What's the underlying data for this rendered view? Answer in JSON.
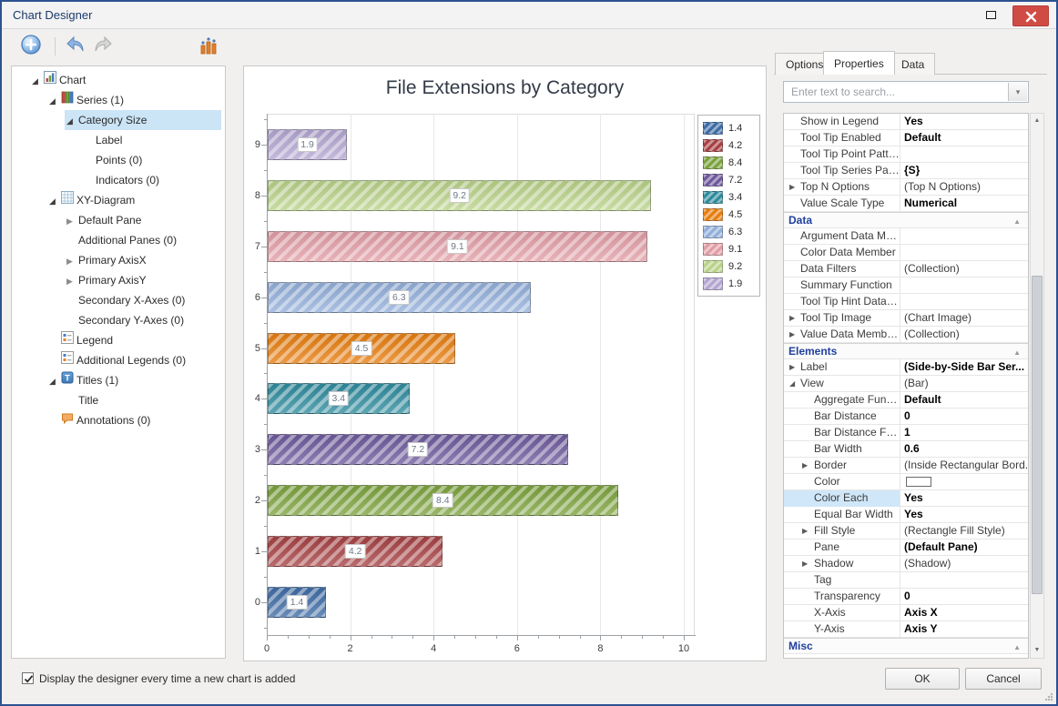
{
  "window": {
    "title": "Chart Designer"
  },
  "toolbar": {
    "buttons": [
      {
        "icon": "add-chart-icon"
      },
      {
        "icon": "undo-icon"
      },
      {
        "icon": "redo-icon"
      },
      {
        "icon": "chart-type-icon"
      }
    ]
  },
  "tree": {
    "items": [
      {
        "label": "Chart",
        "level": 0,
        "glyph": "expanded",
        "icon": "chart-icon"
      },
      {
        "label": "Series (1)",
        "level": 1,
        "glyph": "expanded",
        "icon": "series-icon"
      },
      {
        "label": "Category Size",
        "level": 2,
        "glyph": "expanded",
        "selected": true
      },
      {
        "label": "Label",
        "level": 3
      },
      {
        "label": "Points (0)",
        "level": 3
      },
      {
        "label": "Indicators (0)",
        "level": 3
      },
      {
        "label": "XY-Diagram",
        "level": 1,
        "glyph": "expanded",
        "icon": "diagram-icon"
      },
      {
        "label": "Default Pane",
        "level": 2,
        "glyph": "collapsed"
      },
      {
        "label": "Additional Panes (0)",
        "level": 2
      },
      {
        "label": "Primary AxisX",
        "level": 2,
        "glyph": "collapsed"
      },
      {
        "label": "Primary AxisY",
        "level": 2,
        "glyph": "collapsed"
      },
      {
        "label": "Secondary X-Axes (0)",
        "level": 2
      },
      {
        "label": "Secondary Y-Axes (0)",
        "level": 2
      },
      {
        "label": "Legend",
        "level": 1,
        "icon": "legend-icon"
      },
      {
        "label": "Additional Legends (0)",
        "level": 1,
        "icon": "legend-icon"
      },
      {
        "label": "Titles (1)",
        "level": 1,
        "glyph": "expanded",
        "icon": "title-icon"
      },
      {
        "label": "Title",
        "level": 2
      },
      {
        "label": "Annotations (0)",
        "level": 1,
        "icon": "annotation-icon"
      }
    ]
  },
  "chart_data": {
    "type": "bar",
    "orientation": "horizontal",
    "title": "File Extensions by Category",
    "categories": [
      "0",
      "1",
      "2",
      "3",
      "4",
      "5",
      "6",
      "7",
      "8",
      "9"
    ],
    "values": [
      1.4,
      4.2,
      8.4,
      7.2,
      3.4,
      4.5,
      6.3,
      9.1,
      9.2,
      1.9
    ],
    "bar_labels": [
      "1.4",
      "4.2",
      "8.4",
      "7.2",
      "3.4",
      "4.5",
      "6.3",
      "9.1",
      "9.2",
      "1.9"
    ],
    "colors": [
      "#3F6CA5",
      "#A64143",
      "#7CA23E",
      "#6D5A9C",
      "#2F8B9D",
      "#E67D0F",
      "#93AFDA",
      "#E19DA6",
      "#B9D289",
      "#B3A6D1"
    ],
    "xlim": [
      0,
      10.26
    ],
    "x_ticks": [
      0,
      2,
      4,
      6,
      8,
      10
    ],
    "minor_tick_step": 0.5,
    "grid": true,
    "legend": {
      "position": "top-right",
      "labels": [
        "1.4",
        "4.2",
        "8.4",
        "7.2",
        "3.4",
        "4.5",
        "6.3",
        "9.1",
        "9.2",
        "1.9"
      ]
    }
  },
  "properties_panel": {
    "tabs": [
      {
        "label": "Options",
        "active": false
      },
      {
        "label": "Properties",
        "active": true
      },
      {
        "label": "Data",
        "active": false
      }
    ],
    "search_placeholder": "Enter text to search...",
    "rows": [
      {
        "type": "property",
        "name": "Show in Legend",
        "value": "Yes",
        "bold": true,
        "indent": 1
      },
      {
        "type": "property",
        "name": "Tool Tip Enabled",
        "value": "Default",
        "bold": true,
        "indent": 1
      },
      {
        "type": "property",
        "name": "Tool Tip Point Pattern",
        "value": "",
        "indent": 1
      },
      {
        "type": "property",
        "name": "Tool Tip Series Pattern",
        "value": "{S}",
        "bold": true,
        "indent": 1
      },
      {
        "type": "property",
        "name": "Top N Options",
        "value": "(Top N Options)",
        "arrow": "collapsed",
        "indent": 1
      },
      {
        "type": "property",
        "name": "Value Scale Type",
        "value": "Numerical",
        "bold": true,
        "indent": 1
      },
      {
        "type": "category",
        "name": "Data"
      },
      {
        "type": "property",
        "name": "Argument Data Me...",
        "value": "",
        "indent": 1
      },
      {
        "type": "property",
        "name": "Color Data Member",
        "value": "",
        "indent": 1
      },
      {
        "type": "property",
        "name": "Data Filters",
        "value": "(Collection)",
        "indent": 1
      },
      {
        "type": "property",
        "name": "Summary Function",
        "value": "",
        "indent": 1
      },
      {
        "type": "property",
        "name": "Tool Tip Hint Data M...",
        "value": "",
        "indent": 1
      },
      {
        "type": "property",
        "name": "Tool Tip Image",
        "value": "(Chart Image)",
        "arrow": "collapsed",
        "indent": 1
      },
      {
        "type": "property",
        "name": "Value Data Members",
        "value": "(Collection)",
        "arrow": "collapsed",
        "indent": 1
      },
      {
        "type": "category",
        "name": "Elements"
      },
      {
        "type": "property",
        "name": "Label",
        "value": "(Side-by-Side Bar Ser...",
        "bold": true,
        "arrow": "collapsed",
        "indent": 1
      },
      {
        "type": "property",
        "name": "View",
        "value": "(Bar)",
        "arrow": "expanded",
        "indent": 1
      },
      {
        "type": "property",
        "name": "Aggregate Funct...",
        "value": "Default",
        "bold": true,
        "indent": 2
      },
      {
        "type": "property",
        "name": "Bar Distance",
        "value": "0",
        "bold": true,
        "indent": 2
      },
      {
        "type": "property",
        "name": "Bar Distance Fixed",
        "value": "1",
        "bold": true,
        "indent": 2
      },
      {
        "type": "property",
        "name": "Bar Width",
        "value": "0.6",
        "bold": true,
        "indent": 2
      },
      {
        "type": "property",
        "name": "Border",
        "value": "(Inside Rectangular Bord...",
        "arrow": "collapsed",
        "indent": 2
      },
      {
        "type": "property",
        "name": "Color",
        "value": "",
        "swatch": true,
        "indent": 2
      },
      {
        "type": "property",
        "name": "Color Each",
        "value": "Yes",
        "bold": true,
        "indent": 2,
        "selected": true
      },
      {
        "type": "property",
        "name": "Equal Bar Width",
        "value": "Yes",
        "bold": true,
        "indent": 2
      },
      {
        "type": "property",
        "name": "Fill Style",
        "value": "(Rectangle Fill Style)",
        "arrow": "collapsed",
        "indent": 2
      },
      {
        "type": "property",
        "name": "Pane",
        "value": "(Default Pane)",
        "bold": true,
        "indent": 2
      },
      {
        "type": "property",
        "name": "Shadow",
        "value": "(Shadow)",
        "arrow": "collapsed",
        "indent": 2
      },
      {
        "type": "property",
        "name": "Tag",
        "value": "",
        "indent": 2
      },
      {
        "type": "property",
        "name": "Transparency",
        "value": "0",
        "bold": true,
        "indent": 2
      },
      {
        "type": "property",
        "name": "X-Axis",
        "value": "Axis X",
        "bold": true,
        "indent": 2
      },
      {
        "type": "property",
        "name": "Y-Axis",
        "value": "Axis Y",
        "bold": true,
        "indent": 2
      },
      {
        "type": "category",
        "name": "Misc"
      }
    ]
  },
  "footer": {
    "checkbox_label": "Display the designer every time a new chart is added",
    "checkbox_checked": true,
    "ok_label": "OK",
    "cancel_label": "Cancel"
  }
}
